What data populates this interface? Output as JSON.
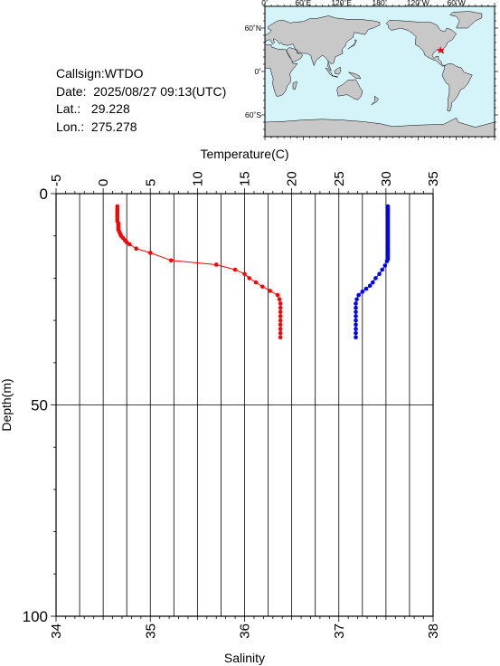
{
  "info": {
    "callsign": "Callsign:WTDO",
    "date": "Date:  2025/08/27 09:13(UTC)",
    "lat": "Lat.:   29.228",
    "lon": "Lon.:  275.278"
  },
  "map": {
    "lon_labels": [
      "0˚",
      "60˚E",
      "120˚E",
      "180˚",
      "120˚W",
      "60˚W"
    ],
    "lat_labels": [
      "60˚N",
      "0˚",
      "60˚S"
    ],
    "ocean_color": "#d4f4fa",
    "land_color": "#c8c8c8",
    "marker_color": "#ff0000",
    "station": {
      "lon": 275.278,
      "lat": 29.228
    }
  },
  "chart_data": {
    "type": "line",
    "x_top": {
      "label": "Temperature(C)",
      "range": [
        -5,
        35
      ],
      "ticks": [
        "-5",
        "0",
        "5",
        "10",
        "15",
        "20",
        "25",
        "30",
        "35"
      ]
    },
    "x_bottom": {
      "label": "Salinity",
      "range": [
        34,
        38
      ],
      "ticks": [
        "34",
        "35",
        "36",
        "37",
        "38"
      ]
    },
    "y": {
      "label": "Depth(m)",
      "range": [
        0,
        100
      ],
      "inverted": true,
      "ticks": [
        "0",
        "50",
        "100"
      ]
    },
    "grid": true,
    "series": [
      {
        "quantity": "temperature",
        "axis": "top",
        "color": "#ff0000",
        "points": [
          [
            1.5,
            3
          ],
          [
            1.5,
            3.5
          ],
          [
            1.5,
            4
          ],
          [
            1.5,
            4.5
          ],
          [
            1.5,
            5
          ],
          [
            1.5,
            5.5
          ],
          [
            1.5,
            6
          ],
          [
            1.5,
            6.5
          ],
          [
            1.6,
            7
          ],
          [
            1.6,
            7.5
          ],
          [
            1.6,
            8
          ],
          [
            1.6,
            8.5
          ],
          [
            1.7,
            9
          ],
          [
            1.8,
            9.5
          ],
          [
            1.9,
            10
          ],
          [
            2.1,
            10.5
          ],
          [
            2.3,
            11
          ],
          [
            2.5,
            11.5
          ],
          [
            2.8,
            12
          ],
          [
            3.5,
            13
          ],
          [
            5.0,
            14
          ],
          [
            7.2,
            15.8
          ],
          [
            12.0,
            16.8
          ],
          [
            14.0,
            18
          ],
          [
            15.0,
            19
          ],
          [
            15.5,
            20
          ],
          [
            16.2,
            21
          ],
          [
            16.9,
            22
          ],
          [
            17.7,
            23
          ],
          [
            18.5,
            24
          ],
          [
            18.7,
            25
          ],
          [
            18.8,
            26
          ],
          [
            18.8,
            27
          ],
          [
            18.8,
            28
          ],
          [
            18.8,
            29
          ],
          [
            18.8,
            30
          ],
          [
            18.8,
            31
          ],
          [
            18.8,
            32
          ],
          [
            18.8,
            33
          ],
          [
            18.8,
            34
          ]
        ]
      },
      {
        "quantity": "salinity",
        "axis": "bottom",
        "color": "#0000ff",
        "points": [
          [
            37.52,
            3
          ],
          [
            37.52,
            3.5
          ],
          [
            37.52,
            4
          ],
          [
            37.52,
            4.5
          ],
          [
            37.52,
            5
          ],
          [
            37.52,
            5.5
          ],
          [
            37.52,
            6
          ],
          [
            37.52,
            6.5
          ],
          [
            37.52,
            7
          ],
          [
            37.52,
            7.5
          ],
          [
            37.52,
            8
          ],
          [
            37.52,
            8.5
          ],
          [
            37.52,
            9
          ],
          [
            37.52,
            9.5
          ],
          [
            37.52,
            10
          ],
          [
            37.52,
            10.5
          ],
          [
            37.52,
            11
          ],
          [
            37.52,
            11.5
          ],
          [
            37.52,
            12
          ],
          [
            37.52,
            12.5
          ],
          [
            37.52,
            13
          ],
          [
            37.52,
            13.5
          ],
          [
            37.52,
            14
          ],
          [
            37.52,
            14.5
          ],
          [
            37.52,
            15
          ],
          [
            37.52,
            15.5
          ],
          [
            37.51,
            16
          ],
          [
            37.49,
            17
          ],
          [
            37.46,
            18
          ],
          [
            37.43,
            19
          ],
          [
            37.39,
            20
          ],
          [
            37.36,
            21
          ],
          [
            37.33,
            21.8
          ],
          [
            37.29,
            22.5
          ],
          [
            37.25,
            23.2
          ],
          [
            37.21,
            24
          ],
          [
            37.19,
            25
          ],
          [
            37.18,
            26
          ],
          [
            37.18,
            27
          ],
          [
            37.18,
            28
          ],
          [
            37.18,
            29
          ],
          [
            37.18,
            30
          ],
          [
            37.18,
            31
          ],
          [
            37.18,
            32
          ],
          [
            37.18,
            33
          ],
          [
            37.18,
            34
          ]
        ]
      }
    ]
  }
}
